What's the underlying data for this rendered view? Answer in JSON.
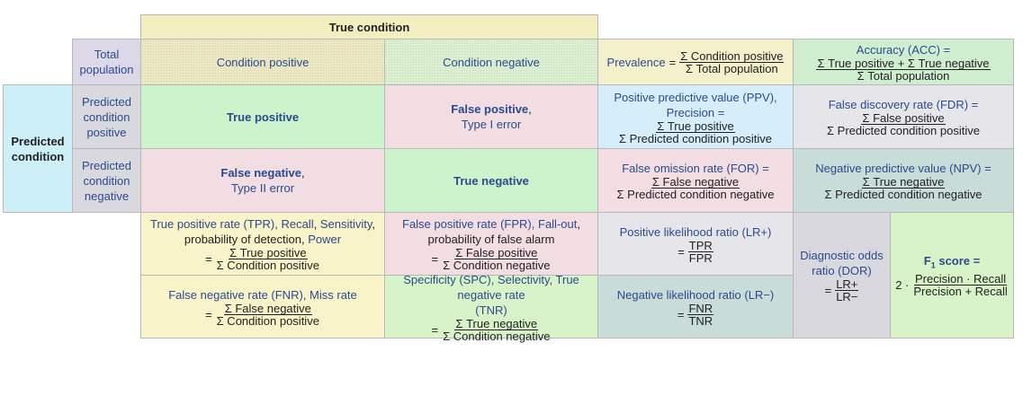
{
  "header": {
    "true_condition": "True condition",
    "predicted_condition": "Predicted condition",
    "total_population": "Total population",
    "condition_positive": "Condition positive",
    "condition_negative": "Condition negative",
    "predicted_condition_positive": "Predicted condition positive",
    "predicted_condition_negative": "Predicted condition negative"
  },
  "cells": {
    "true_positive": "True positive",
    "false_positive": "False positive",
    "false_positive_suffix": ",",
    "type_i_error": "Type I error",
    "false_negative": "False negative",
    "false_negative_suffix": ",",
    "type_ii_error": "Type II error",
    "true_negative": "True negative"
  },
  "prevalence": {
    "label": "Prevalence",
    "eq": "=",
    "num": "Σ Condition positive",
    "den": "Σ Total population"
  },
  "accuracy": {
    "label": "Accuracy (ACC) =",
    "num": "Σ True positive + Σ True negative",
    "den": "Σ Total population"
  },
  "ppv": {
    "label": "Positive predictive value (PPV),",
    "label2": "Precision =",
    "num": "Σ True positive",
    "den": "Σ Predicted condition positive"
  },
  "fdr": {
    "label": "False discovery rate (FDR) =",
    "num": "Σ False positive",
    "den": "Σ Predicted condition positive"
  },
  "for": {
    "label": "False omission rate (FOR) =",
    "num": "Σ False negative",
    "den": "Σ Predicted condition negative"
  },
  "npv": {
    "label": "Negative predictive value (NPV) =",
    "num": "Σ True negative",
    "den": "Σ Predicted condition negative"
  },
  "tpr": {
    "label_a": "True positive rate (TPR),",
    "label_b": "Recall",
    "label_c": ",",
    "label_d": "Sensitivity",
    "label_e": ",",
    "label_f": "probability of detection,",
    "label_g": "Power",
    "eq": "=",
    "num": "Σ True positive",
    "den": "Σ Condition positive"
  },
  "fpr": {
    "label_a": "False positive rate (FPR),",
    "label_b": "Fall-out",
    "label_c": ",",
    "label_d": "probability of false alarm",
    "eq": "=",
    "num": "Σ False positive",
    "den": "Σ Condition negative"
  },
  "fnr": {
    "label_a": "False negative rate (FNR),",
    "label_b": "Miss rate",
    "eq": "=",
    "num": "Σ False negative",
    "den": "Σ Condition positive"
  },
  "tnr": {
    "label_a": "Specificity (SPC),",
    "label_b": "Selectivity,",
    "label_c": "True negative rate",
    "label_d": "(TNR)",
    "eq": "=",
    "num": "Σ True negative",
    "den": "Σ Condition negative"
  },
  "lrp": {
    "label": "Positive likelihood ratio (LR+)",
    "eq": "=",
    "num": "TPR",
    "den": "FPR"
  },
  "lrn": {
    "label": "Negative likelihood ratio (LR−)",
    "eq": "=",
    "num": "FNR",
    "den": "TNR"
  },
  "dor": {
    "label": "Diagnostic odds ratio (DOR)",
    "eq": "=",
    "num": "LR+",
    "den": "LR−"
  },
  "f1": {
    "label": "F",
    "sub": "1",
    "label_tail": "score =",
    "prefix": "2 ·",
    "num": "Precision · Recall",
    "den": "Precision + Recall"
  }
}
